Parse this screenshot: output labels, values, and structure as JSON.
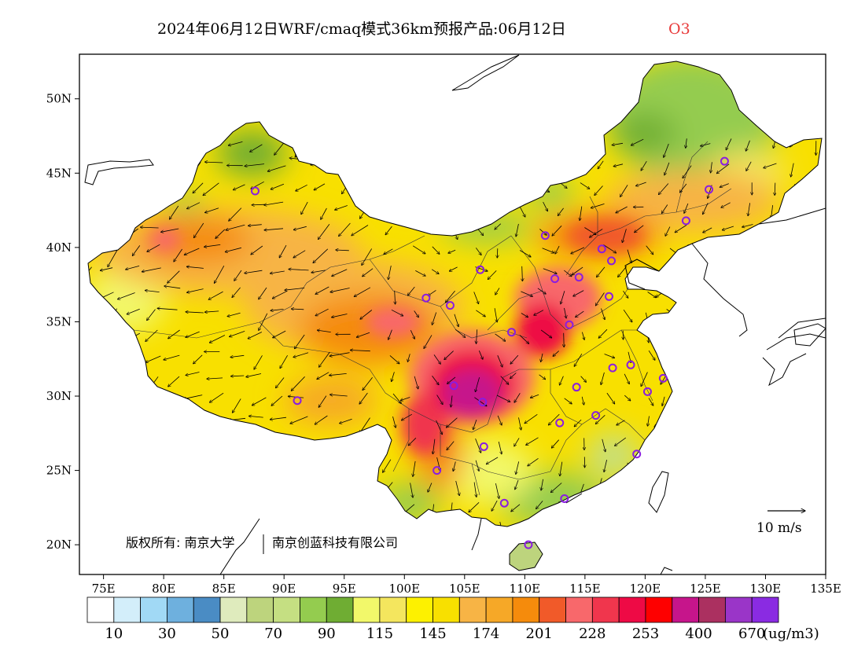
{
  "title": {
    "main": "2024年06月12日WRF/cmaq模式36km预报产品:06月12日",
    "species": "O3",
    "species_color": "#e83a3a"
  },
  "map": {
    "lon_range": [
      73,
      135
    ],
    "lat_range": [
      18,
      53
    ],
    "lon_ticks": [
      "75E",
      "80E",
      "85E",
      "90E",
      "95E",
      "100E",
      "105E",
      "110E",
      "115E",
      "120E",
      "125E",
      "130E",
      "135E"
    ],
    "lat_ticks": [
      "20N",
      "25N",
      "30N",
      "35N",
      "40N",
      "45N",
      "50N"
    ],
    "copyright": "版权所有: 南京大学",
    "copyright_2": "南京创蓝科技有限公司",
    "wind_ref_label": "10 m/s"
  },
  "colorbar": {
    "colors": [
      "#ffffff",
      "#d3eefa",
      "#a1d9f5",
      "#6eb0de",
      "#4a8cc4",
      "#dfebbd",
      "#bdd47d",
      "#c5df82",
      "#94cc4f",
      "#6fad33",
      "#f2f86a",
      "#f4e65e",
      "#fdf100",
      "#f8e000",
      "#f7b445",
      "#f6a827",
      "#f58b0c",
      "#f15a29",
      "#f8686b",
      "#f0364d",
      "#ee0a45",
      "#fe0000",
      "#c6158b",
      "#ab3060",
      "#9a35c8",
      "#8a2be2"
    ],
    "labels": [
      "10",
      "30",
      "50",
      "70",
      "90",
      "115",
      "145",
      "174",
      "201",
      "228",
      "253",
      "400",
      "670"
    ],
    "unit": "(ug/m3)"
  },
  "stations": [
    [
      87.6,
      43.8
    ],
    [
      91.1,
      29.7
    ],
    [
      101.8,
      36.6
    ],
    [
      103.8,
      36.1
    ],
    [
      106.3,
      38.5
    ],
    [
      106.6,
      26.6
    ],
    [
      106.5,
      29.6
    ],
    [
      104.1,
      30.7
    ],
    [
      102.7,
      25.0
    ],
    [
      108.3,
      22.8
    ],
    [
      110.3,
      20.0
    ],
    [
      108.9,
      34.3
    ],
    [
      111.7,
      40.8
    ],
    [
      112.5,
      37.9
    ],
    [
      113.7,
      34.8
    ],
    [
      114.5,
      38.0
    ],
    [
      116.4,
      39.9
    ],
    [
      117.2,
      39.1
    ],
    [
      117.0,
      36.7
    ],
    [
      117.3,
      31.9
    ],
    [
      118.8,
      32.1
    ],
    [
      120.2,
      30.3
    ],
    [
      121.5,
      31.2
    ],
    [
      114.3,
      30.6
    ],
    [
      112.9,
      28.2
    ],
    [
      115.9,
      28.7
    ],
    [
      119.3,
      26.1
    ],
    [
      113.3,
      23.1
    ],
    [
      123.4,
      41.8
    ],
    [
      125.3,
      43.9
    ],
    [
      126.6,
      45.8
    ]
  ]
}
